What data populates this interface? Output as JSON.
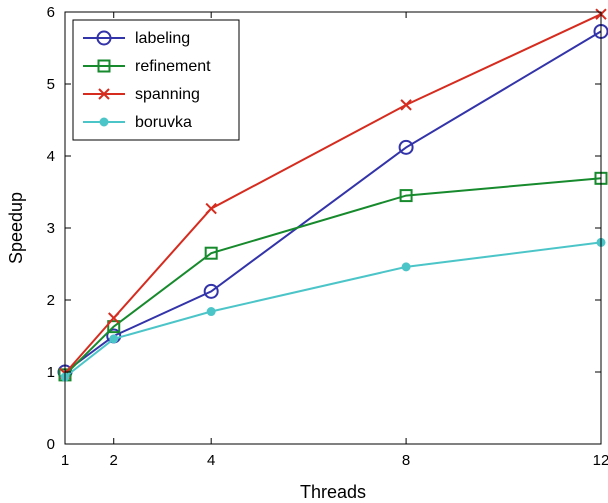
{
  "chart_data": {
    "type": "line",
    "xlabel": "Threads",
    "ylabel": "Speedup",
    "xlim": [
      1,
      12
    ],
    "ylim": [
      0,
      6
    ],
    "xticks": [
      1,
      2,
      4,
      8,
      12
    ],
    "yticks": [
      0,
      1,
      2,
      3,
      4,
      5,
      6
    ],
    "grid": false,
    "legend_position": "top-left",
    "x": [
      1,
      2,
      4,
      8,
      12
    ],
    "series": [
      {
        "name": "labeling",
        "values": [
          1.0,
          1.5,
          2.12,
          4.12,
          5.73
        ],
        "color": "#3333aa",
        "marker": "circle"
      },
      {
        "name": "refinement",
        "values": [
          0.96,
          1.63,
          2.65,
          3.45,
          3.69
        ],
        "color": "#168a2c",
        "marker": "square"
      },
      {
        "name": "spanning",
        "values": [
          0.98,
          1.75,
          3.27,
          4.71,
          5.97
        ],
        "color": "#d62c1f",
        "marker": "x"
      },
      {
        "name": "boruvka",
        "values": [
          0.93,
          1.46,
          1.84,
          2.46,
          2.8
        ],
        "color": "#4cc5c9",
        "marker": "dot"
      }
    ]
  }
}
